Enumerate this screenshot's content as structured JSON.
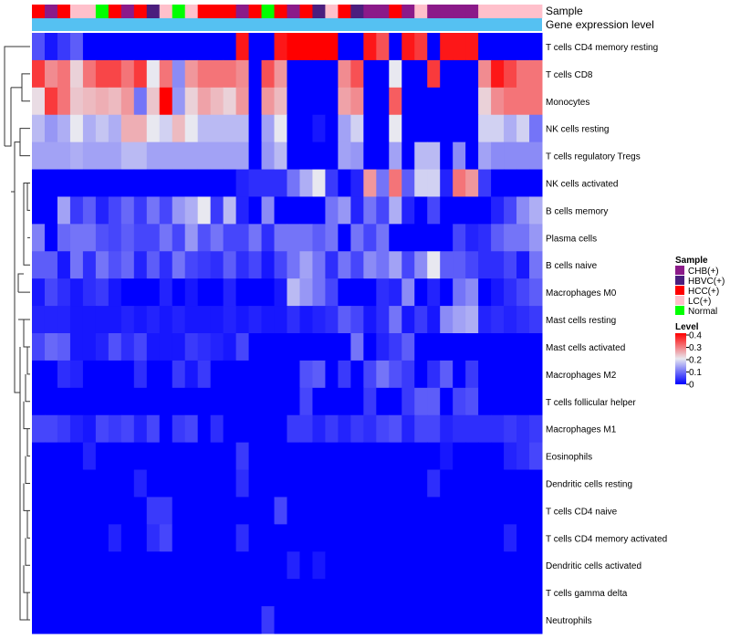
{
  "chart_data": {
    "type": "heatmap",
    "title": "",
    "annotation_tracks": [
      {
        "name": "Sample"
      },
      {
        "name": "Gene expression level"
      }
    ],
    "sample_groups": [
      {
        "name": "CHB(+)",
        "color": "#8B1A89"
      },
      {
        "name": "HBVC(+)",
        "color": "#4B1E7E"
      },
      {
        "name": "HCC(+)",
        "color": "#FF0000"
      },
      {
        "name": "LC(+)",
        "color": "#FFC0CB"
      },
      {
        "name": "Normal",
        "color": "#00FF00"
      }
    ],
    "sample_annotation": [
      2,
      0,
      2,
      3,
      3,
      4,
      2,
      0,
      2,
      1,
      3,
      4,
      3,
      2,
      2,
      2,
      0,
      2,
      4,
      2,
      0,
      2,
      1,
      3,
      2,
      1,
      0,
      0,
      2,
      0,
      3,
      0,
      0,
      0,
      0,
      3,
      3,
      3,
      3,
      3
    ],
    "expression_level_color": "#55C1F2",
    "legend": {
      "sample_title": "Sample",
      "level_title": "Level",
      "level_ticks": [
        "0.4",
        "0.3",
        "0.2",
        "0.1",
        "0"
      ],
      "color_low": "#0000FF",
      "color_mid": "#E8E8F0",
      "color_high": "#FF0000",
      "range": [
        0,
        0.4
      ],
      "position": "right"
    },
    "rows": [
      "T cells CD4 memory resting",
      "T cells CD8",
      "Monocytes",
      "NK cells resting",
      "T cells regulatory  Tregs",
      "NK cells activated",
      "B cells memory",
      "Plasma cells",
      "B cells naive",
      "Macrophages M0",
      "Mast cells resting",
      "Mast cells activated",
      "Macrophages M2",
      "T cells follicular helper",
      "Macrophages M1",
      "Eosinophils",
      "Dendritic cells resting",
      "T cells CD4 naive",
      "T cells CD4 memory activated",
      "Dendritic cells activated",
      "T cells gamma delta",
      "Neutrophils"
    ],
    "values": [
      [
        0.07,
        0.02,
        0.05,
        0.08,
        0,
        0,
        0,
        0,
        0,
        0,
        0,
        0,
        0,
        0,
        0,
        0,
        0.38,
        0,
        0,
        0.38,
        0.4,
        0.4,
        0.4,
        0.4,
        0,
        0,
        0.38,
        0.33,
        0,
        0.38,
        0.35,
        0,
        0.38,
        0.38,
        0.38,
        0,
        0,
        0,
        0,
        0
      ],
      [
        0.35,
        0.28,
        0.3,
        0.22,
        0.3,
        0.34,
        0.34,
        0.3,
        0.35,
        0.2,
        0.3,
        0.12,
        0.27,
        0.3,
        0.3,
        0.3,
        0.28,
        0,
        0.33,
        0.27,
        0,
        0,
        0,
        0,
        0.28,
        0.33,
        0,
        0,
        0.2,
        0,
        0,
        0.35,
        0,
        0,
        0,
        0.28,
        0.38,
        0.34,
        0.3,
        0.3
      ],
      [
        0.21,
        0.35,
        0.3,
        0.23,
        0.24,
        0.25,
        0.24,
        0.27,
        0.1,
        0.23,
        0.4,
        0.13,
        0.22,
        0.26,
        0.24,
        0.22,
        0.27,
        0,
        0.27,
        0.24,
        0,
        0,
        0,
        0,
        0.26,
        0.28,
        0,
        0,
        0.32,
        0,
        0,
        0,
        0,
        0,
        0,
        0.22,
        0.28,
        0.3,
        0.3,
        0.3
      ],
      [
        0.16,
        0.13,
        0.15,
        0.2,
        0.15,
        0.17,
        0.15,
        0.25,
        0.25,
        0.2,
        0.18,
        0.24,
        0.2,
        0.16,
        0.16,
        0.16,
        0.16,
        0,
        0.14,
        0.2,
        0,
        0,
        0.02,
        0,
        0.14,
        0.18,
        0,
        0,
        0.2,
        0,
        0,
        0,
        0,
        0,
        0,
        0.18,
        0.18,
        0.15,
        0.18,
        0.1
      ],
      [
        0.14,
        0.14,
        0.14,
        0.15,
        0.14,
        0.14,
        0.14,
        0.16,
        0.16,
        0.14,
        0.14,
        0.14,
        0.14,
        0.14,
        0.14,
        0.14,
        0.14,
        0,
        0.13,
        0.16,
        0,
        0,
        0,
        0,
        0.14,
        0.13,
        0,
        0,
        0.14,
        0,
        0.16,
        0.16,
        0,
        0.12,
        0,
        0.14,
        0.12,
        0.12,
        0.12,
        0.12
      ],
      [
        0,
        0,
        0,
        0,
        0,
        0,
        0,
        0,
        0,
        0,
        0,
        0,
        0,
        0,
        0,
        0,
        0.03,
        0.04,
        0.04,
        0.04,
        0.1,
        0.15,
        0.2,
        0.05,
        0,
        0.03,
        0.27,
        0.1,
        0.3,
        0.08,
        0.18,
        0.18,
        0.03,
        0.3,
        0.27,
        0.05,
        0,
        0,
        0,
        0
      ],
      [
        0,
        0,
        0.14,
        0.05,
        0.08,
        0.03,
        0.06,
        0.09,
        0.05,
        0.1,
        0.06,
        0.13,
        0.15,
        0.2,
        0.05,
        0.16,
        0.03,
        0,
        0.12,
        0,
        0,
        0,
        0,
        0.1,
        0.13,
        0.03,
        0.1,
        0.06,
        0.15,
        0.03,
        0,
        0.06,
        0,
        0,
        0,
        0,
        0.03,
        0.06,
        0.12,
        0.15
      ],
      [
        0.11,
        0,
        0.09,
        0.1,
        0.1,
        0.07,
        0.06,
        0.08,
        0.06,
        0.06,
        0.1,
        0.06,
        0.13,
        0.07,
        0.1,
        0.06,
        0.06,
        0.1,
        0.04,
        0.1,
        0.1,
        0.1,
        0.08,
        0.1,
        0,
        0.1,
        0.06,
        0.1,
        0,
        0,
        0,
        0,
        0,
        0.06,
        0.03,
        0.04,
        0.08,
        0.1,
        0.1,
        0.13
      ],
      [
        0.08,
        0.08,
        0.02,
        0.1,
        0.04,
        0.1,
        0.07,
        0.09,
        0.03,
        0.08,
        0.04,
        0.1,
        0.06,
        0.05,
        0.04,
        0.08,
        0.04,
        0.06,
        0.02,
        0.06,
        0.1,
        0.14,
        0.1,
        0.04,
        0.1,
        0.06,
        0.12,
        0.1,
        0.14,
        0.06,
        0.12,
        0.2,
        0.08,
        0.08,
        0.06,
        0.04,
        0.04,
        0.06,
        0.02,
        0.1
      ],
      [
        0.02,
        0.06,
        0.04,
        0.02,
        0.04,
        0.05,
        0.02,
        0,
        0,
        0,
        0.03,
        0,
        0.02,
        0,
        0,
        0.03,
        0,
        0,
        0,
        0.02,
        0.16,
        0.13,
        0.1,
        0.06,
        0,
        0,
        0,
        0.04,
        0.03,
        0.12,
        0,
        0.03,
        0,
        0.1,
        0.12,
        0,
        0.02,
        0.04,
        0.06,
        0.08
      ],
      [
        0.03,
        0.03,
        0.03,
        0.02,
        0.02,
        0.02,
        0.02,
        0.03,
        0.02,
        0.03,
        0.02,
        0.03,
        0.02,
        0.02,
        0.02,
        0.03,
        0.02,
        0.03,
        0.02,
        0.02,
        0.04,
        0.02,
        0.03,
        0.04,
        0.08,
        0.06,
        0.02,
        0.04,
        0.1,
        0.02,
        0.05,
        0.02,
        0.12,
        0.14,
        0.15,
        0.03,
        0.04,
        0.03,
        0.04,
        0.05
      ],
      [
        0.06,
        0.09,
        0.08,
        0.02,
        0.02,
        0.03,
        0.07,
        0.04,
        0.06,
        0.02,
        0.02,
        0.02,
        0.05,
        0.04,
        0.03,
        0.02,
        0.06,
        0,
        0,
        0,
        0,
        0,
        0,
        0,
        0,
        0.1,
        0,
        0.03,
        0.05,
        0.08,
        0,
        0,
        0,
        0,
        0,
        0,
        0,
        0,
        0,
        0
      ],
      [
        0,
        0,
        0.04,
        0.03,
        0,
        0,
        0,
        0,
        0.04,
        0,
        0,
        0.05,
        0.02,
        0.05,
        0,
        0,
        0,
        0,
        0,
        0,
        0,
        0.07,
        0.08,
        0,
        0.05,
        0,
        0.06,
        0.1,
        0.07,
        0.05,
        0,
        0.04,
        0.08,
        0,
        0.05,
        0,
        0,
        0,
        0,
        0
      ],
      [
        0,
        0,
        0,
        0,
        0,
        0,
        0,
        0,
        0,
        0,
        0,
        0,
        0,
        0,
        0,
        0,
        0,
        0,
        0,
        0,
        0,
        0.06,
        0,
        0,
        0,
        0,
        0.05,
        0,
        0,
        0.05,
        0.08,
        0.08,
        0,
        0.06,
        0.07,
        0,
        0,
        0,
        0,
        0
      ],
      [
        0.06,
        0.06,
        0.05,
        0.03,
        0.02,
        0.06,
        0.05,
        0.06,
        0.03,
        0.06,
        0,
        0.05,
        0.06,
        0,
        0.04,
        0,
        0,
        0,
        0,
        0,
        0.05,
        0.05,
        0.03,
        0.05,
        0.03,
        0.05,
        0.04,
        0.06,
        0.07,
        0.03,
        0.06,
        0.06,
        0.03,
        0.04,
        0.04,
        0.04,
        0.04,
        0.05,
        0.04,
        0.05
      ],
      [
        0,
        0,
        0,
        0,
        0.03,
        0,
        0,
        0,
        0,
        0,
        0,
        0,
        0,
        0,
        0,
        0,
        0.05,
        0,
        0,
        0,
        0,
        0,
        0,
        0,
        0,
        0,
        0,
        0,
        0,
        0,
        0,
        0,
        0.02,
        0,
        0,
        0,
        0,
        0.03,
        0.04,
        0.06
      ],
      [
        0,
        0,
        0,
        0,
        0,
        0,
        0,
        0,
        0.03,
        0,
        0,
        0,
        0,
        0,
        0,
        0,
        0.04,
        0,
        0,
        0,
        0,
        0,
        0,
        0,
        0,
        0,
        0,
        0,
        0,
        0,
        0,
        0.04,
        0,
        0,
        0,
        0,
        0,
        0,
        0,
        0
      ],
      [
        0,
        0,
        0,
        0,
        0,
        0,
        0,
        0,
        0,
        0.05,
        0.05,
        0,
        0,
        0,
        0,
        0,
        0,
        0,
        0,
        0.06,
        0,
        0,
        0,
        0,
        0,
        0,
        0,
        0,
        0,
        0,
        0,
        0,
        0,
        0,
        0,
        0,
        0,
        0,
        0,
        0
      ],
      [
        0,
        0,
        0,
        0,
        0,
        0,
        0.03,
        0,
        0,
        0.04,
        0.06,
        0,
        0,
        0,
        0,
        0,
        0.04,
        0,
        0,
        0,
        0,
        0,
        0,
        0,
        0,
        0,
        0,
        0,
        0,
        0,
        0,
        0,
        0,
        0,
        0,
        0,
        0,
        0.03,
        0,
        0
      ],
      [
        0,
        0,
        0,
        0,
        0,
        0,
        0,
        0,
        0,
        0,
        0,
        0,
        0,
        0,
        0,
        0,
        0,
        0,
        0,
        0,
        0.03,
        0,
        0.02,
        0,
        0,
        0,
        0,
        0,
        0,
        0,
        0,
        0,
        0,
        0,
        0,
        0,
        0,
        0,
        0,
        0
      ],
      [
        0,
        0,
        0,
        0,
        0,
        0,
        0,
        0,
        0,
        0,
        0,
        0,
        0,
        0,
        0,
        0,
        0,
        0,
        0,
        0,
        0,
        0,
        0,
        0,
        0,
        0,
        0,
        0,
        0,
        0,
        0,
        0,
        0,
        0,
        0,
        0,
        0,
        0,
        0,
        0
      ],
      [
        0,
        0,
        0,
        0,
        0,
        0,
        0,
        0,
        0,
        0,
        0,
        0,
        0,
        0,
        0,
        0,
        0,
        0,
        0.05,
        0,
        0,
        0,
        0,
        0,
        0,
        0,
        0,
        0,
        0,
        0,
        0,
        0,
        0,
        0,
        0,
        0,
        0,
        0,
        0,
        0
      ]
    ],
    "row_dendrogram": true
  }
}
